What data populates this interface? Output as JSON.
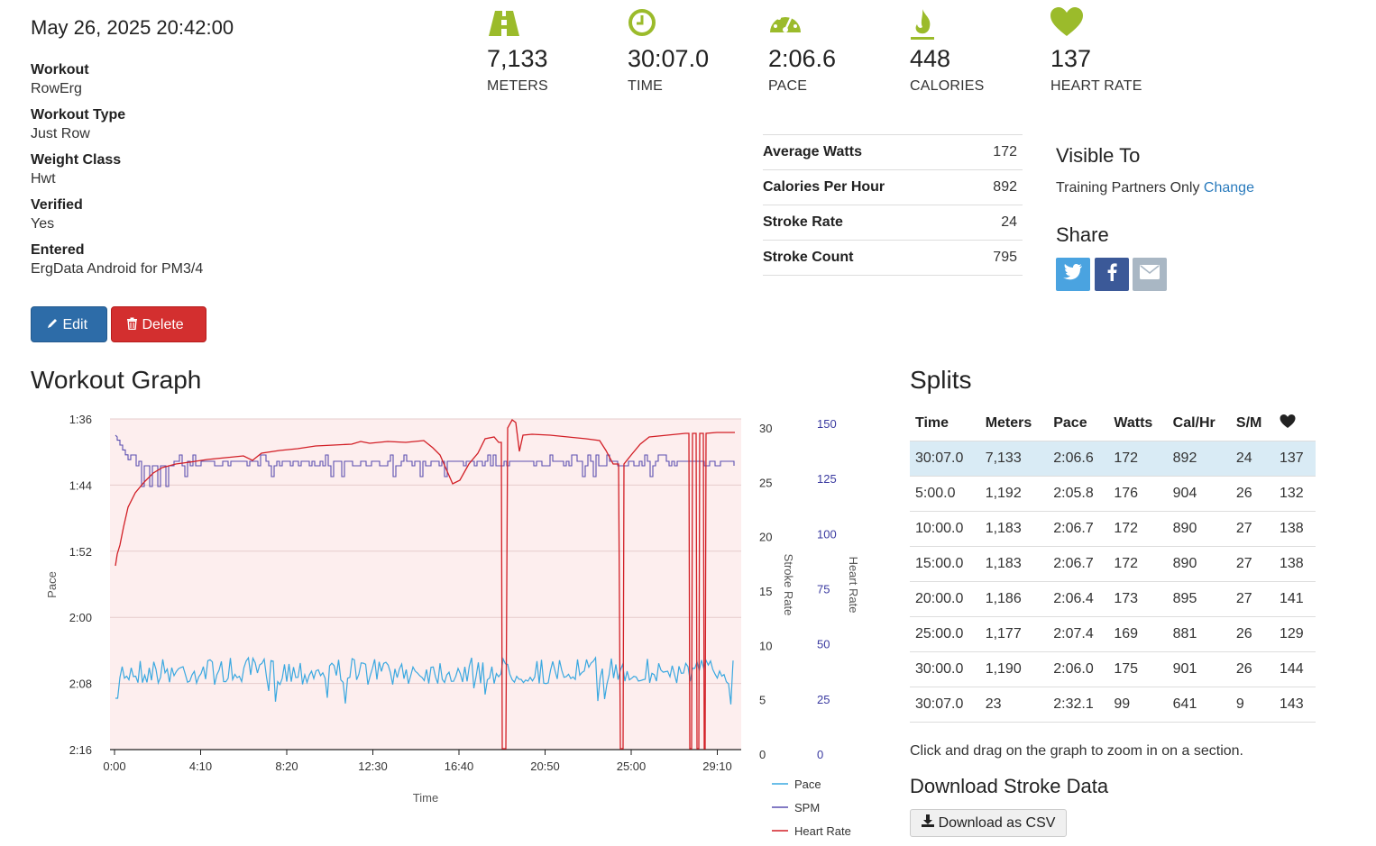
{
  "workout": {
    "datetime": "May 26, 2025 20:42:00",
    "fields": [
      {
        "label": "Workout",
        "value": "RowErg"
      },
      {
        "label": "Workout Type",
        "value": "Just Row"
      },
      {
        "label": "Weight Class",
        "value": "Hwt"
      },
      {
        "label": "Verified",
        "value": "Yes"
      },
      {
        "label": "Entered",
        "value": "ErgData Android for PM3/4"
      }
    ],
    "edit_label": "Edit",
    "delete_label": "Delete"
  },
  "stats": [
    {
      "icon": "road-icon",
      "value": "7,133",
      "label": "METERS"
    },
    {
      "icon": "clock-icon",
      "value": "30:07.0",
      "label": "TIME"
    },
    {
      "icon": "speedometer-icon",
      "value": "2:06.6",
      "label": "PACE"
    },
    {
      "icon": "flame-icon",
      "value": "448",
      "label": "CALORIES"
    },
    {
      "icon": "heart-icon",
      "value": "137",
      "label": "HEART RATE"
    }
  ],
  "metrics": [
    {
      "label": "Average Watts",
      "value": "172"
    },
    {
      "label": "Calories Per Hour",
      "value": "892"
    },
    {
      "label": "Stroke Rate",
      "value": "24"
    },
    {
      "label": "Stroke Count",
      "value": "795"
    }
  ],
  "visibility": {
    "title": "Visible To",
    "value": "Training Partners Only",
    "change_label": "Change"
  },
  "share": {
    "title": "Share",
    "twitter_color": "#4aa3e0",
    "facebook_color": "#3b5998",
    "email_color": "#a9b7c4"
  },
  "graph": {
    "title": "Workout Graph"
  },
  "chart_data": {
    "type": "line",
    "xlabel": "Time",
    "x_ticks": [
      "0:00",
      "4:10",
      "8:20",
      "12:30",
      "16:40",
      "20:50",
      "25:00",
      "29:10"
    ],
    "x_range_seconds": [
      0,
      1807
    ],
    "y_axes": [
      {
        "name": "Pace",
        "label": "Pace",
        "ticks": [
          "1:36",
          "1:44",
          "1:52",
          "2:00",
          "2:08",
          "2:16"
        ],
        "reversed": true,
        "range_seconds": [
          96,
          136
        ]
      },
      {
        "name": "Stroke Rate",
        "label": "Stroke Rate",
        "ticks": [
          "30",
          "25",
          "20",
          "15",
          "10",
          "5",
          "0"
        ],
        "range": [
          0,
          30
        ]
      },
      {
        "name": "Heart Rate",
        "label": "Heart Rate",
        "ticks": [
          "150",
          "125",
          "100",
          "75",
          "50",
          "25",
          "0"
        ],
        "range": [
          0,
          150
        ],
        "color": "#3a3aa0"
      }
    ],
    "series": [
      {
        "name": "Pace",
        "color": "#3aa8e0"
      },
      {
        "name": "SPM",
        "color": "#5a4fb0"
      },
      {
        "name": "Heart Rate",
        "color": "#d21f26"
      }
    ],
    "area_fill": "#fdeeee",
    "legend": "bottom-right"
  },
  "splits": {
    "title": "Splits",
    "columns": [
      "Time",
      "Meters",
      "Pace",
      "Watts",
      "Cal/Hr",
      "S/M"
    ],
    "heart_icon": "heart-icon",
    "rows": [
      [
        "30:07.0",
        "7,133",
        "2:06.6",
        "172",
        "892",
        "24",
        "137"
      ],
      [
        "5:00.0",
        "1,192",
        "2:05.8",
        "176",
        "904",
        "26",
        "132"
      ],
      [
        "10:00.0",
        "1,183",
        "2:06.7",
        "172",
        "890",
        "27",
        "138"
      ],
      [
        "15:00.0",
        "1,183",
        "2:06.7",
        "172",
        "890",
        "27",
        "138"
      ],
      [
        "20:00.0",
        "1,186",
        "2:06.4",
        "173",
        "895",
        "27",
        "141"
      ],
      [
        "25:00.0",
        "1,177",
        "2:07.4",
        "169",
        "881",
        "26",
        "129"
      ],
      [
        "30:00.0",
        "1,190",
        "2:06.0",
        "175",
        "901",
        "26",
        "144"
      ],
      [
        "30:07.0",
        "23",
        "2:32.1",
        "99",
        "641",
        "9",
        "143"
      ]
    ]
  },
  "hint": "Click and drag on the graph to zoom in on a section.",
  "download": {
    "title": "Download Stroke Data",
    "button_label": "Download as CSV"
  }
}
